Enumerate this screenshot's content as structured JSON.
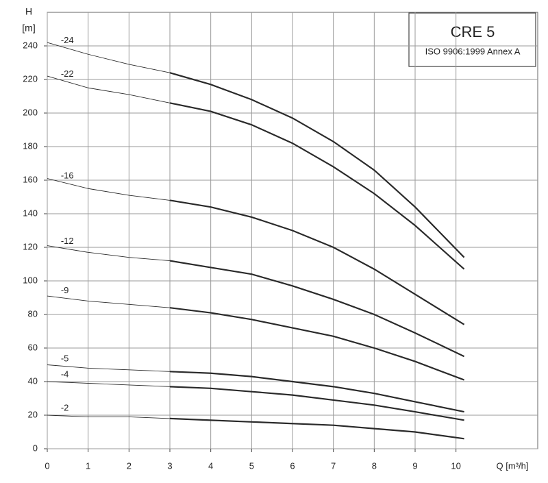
{
  "chart_data": {
    "type": "line",
    "title": "CRE 5",
    "subtitle": "ISO 9906:1999 Annex A",
    "y_label_top": "H",
    "y_label_unit": "[m]",
    "x_label": "Q [m³/h]",
    "x": [
      0,
      1,
      2,
      3,
      4,
      5,
      6,
      7,
      8,
      9,
      10.2
    ],
    "xlim": [
      0,
      12
    ],
    "xticks": [
      0,
      1,
      2,
      3,
      4,
      5,
      6,
      7,
      8,
      9,
      10
    ],
    "ylim": [
      0,
      260
    ],
    "yticks": [
      0,
      20,
      40,
      60,
      80,
      100,
      120,
      140,
      160,
      180,
      200,
      220,
      240
    ],
    "grid": true,
    "color": "#2a2a2a",
    "series": [
      {
        "name": "-24",
        "values": [
          242,
          235,
          229,
          224,
          217,
          208,
          197,
          183,
          166,
          144,
          114
        ]
      },
      {
        "name": "-22",
        "values": [
          222,
          215,
          211,
          206,
          201,
          193,
          182,
          168,
          152,
          133,
          107
        ]
      },
      {
        "name": "-16",
        "values": [
          161,
          155,
          151,
          148,
          144,
          138,
          130,
          120,
          107,
          92,
          74
        ]
      },
      {
        "name": "-12",
        "values": [
          121,
          117,
          114,
          112,
          108,
          104,
          97,
          89,
          80,
          69,
          55
        ]
      },
      {
        "name": "-9",
        "values": [
          91,
          88,
          86,
          84,
          81,
          77,
          72,
          67,
          60,
          52,
          41
        ]
      },
      {
        "name": "-5",
        "values": [
          50,
          48,
          47,
          46,
          45,
          43,
          40,
          37,
          33,
          28,
          22
        ]
      },
      {
        "name": "-4",
        "values": [
          40,
          39,
          38,
          37,
          36,
          34,
          32,
          29,
          26,
          22,
          17
        ]
      },
      {
        "name": "-2",
        "values": [
          20,
          19,
          19,
          18,
          17,
          16,
          15,
          14,
          12,
          10,
          6
        ]
      }
    ]
  }
}
